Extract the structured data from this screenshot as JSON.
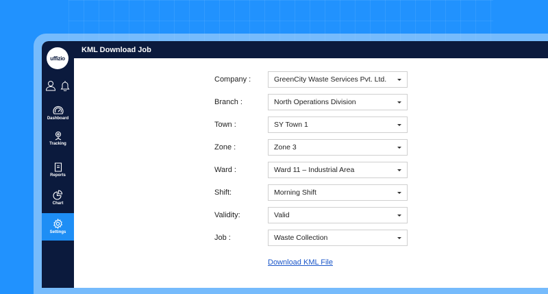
{
  "brand": {
    "logo_text": "uffizio"
  },
  "header": {
    "title": "KML Download Job"
  },
  "sidebar": {
    "items": [
      {
        "label": "Dashboard",
        "icon": "gauge-icon"
      },
      {
        "label": "Tracking",
        "icon": "location-pin-icon"
      },
      {
        "label": "Reports",
        "icon": "document-icon"
      },
      {
        "label": "Chart",
        "icon": "pie-chart-icon"
      },
      {
        "label": "Settings",
        "icon": "gear-icon",
        "active": true
      }
    ]
  },
  "form": {
    "fields": [
      {
        "label": "Company :",
        "value": "GreenCity Waste Services Pvt. Ltd."
      },
      {
        "label": "Branch :",
        "value": "North Operations Division"
      },
      {
        "label": "Town :",
        "value": "SY Town 1"
      },
      {
        "label": "Zone :",
        "value": "Zone 3"
      },
      {
        "label": "Ward :",
        "value": "Ward 11 – Industrial Area"
      },
      {
        "label": "Shift:",
        "value": "Morning Shift"
      },
      {
        "label": "Validity:",
        "value": "Valid"
      },
      {
        "label": "Job :",
        "value": "Waste Collection"
      }
    ],
    "download_link": "Download KML File"
  },
  "colors": {
    "background": "#2192fe",
    "sidebar": "#0b1a3d",
    "active": "#1e8ef5",
    "link": "#1a56c9"
  }
}
